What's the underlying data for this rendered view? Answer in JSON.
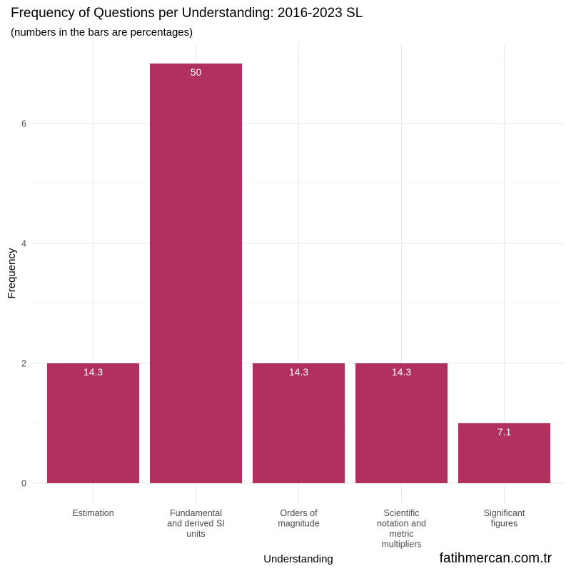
{
  "chart_data": {
    "type": "bar",
    "title": "Frequency of Questions per Understanding: 2016-2023 SL",
    "subtitle": "(numbers in the bars are percentages)",
    "xlabel": "Understanding",
    "ylabel": "Frequency",
    "categories": [
      [
        "Estimation"
      ],
      [
        "Fundamental",
        "and derived SI",
        "units"
      ],
      [
        "Orders of",
        "magnitude"
      ],
      [
        "Scientific",
        "notation and",
        "metric",
        "multipliers"
      ],
      [
        "Significant",
        "figures"
      ]
    ],
    "values": [
      2,
      7,
      2,
      2,
      1
    ],
    "bar_labels": [
      "14.3",
      "50",
      "14.3",
      "14.3",
      "7.1"
    ],
    "ylim": [
      0,
      7.4
    ],
    "yticks": [
      0,
      2,
      4,
      6
    ],
    "grid": true,
    "bar_color": "#b03060",
    "grid_color": "#ebebeb"
  },
  "watermark": "fatihmercan.com.tr"
}
